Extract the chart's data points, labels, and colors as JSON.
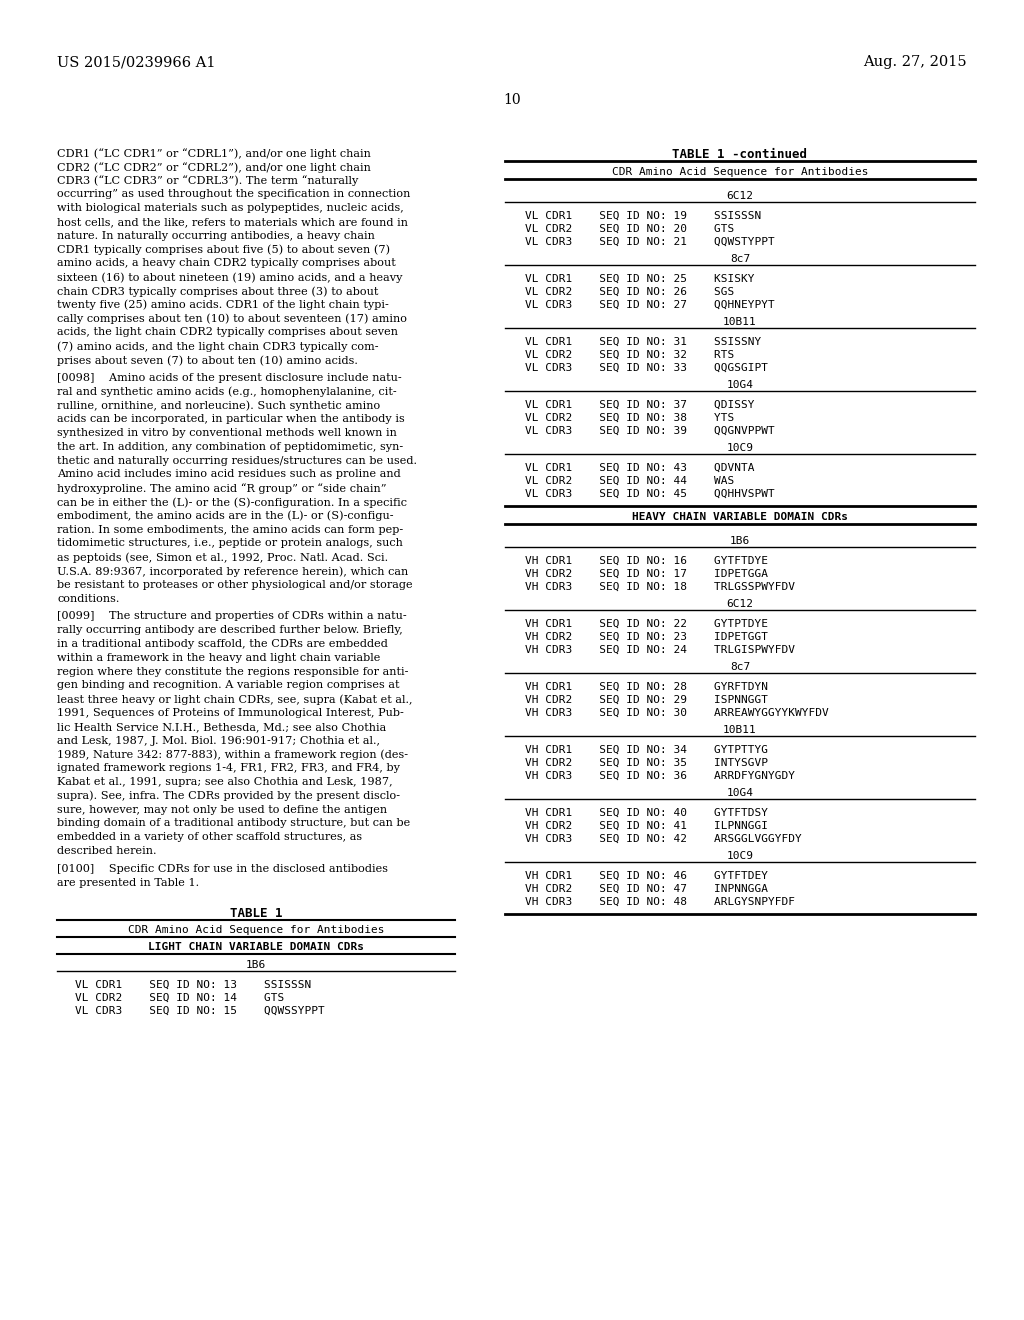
{
  "page_number": "10",
  "patent_left": "US 2015/0239966 A1",
  "patent_right": "Aug. 27, 2015",
  "bg_color": "#ffffff",
  "body_lines_1": [
    "CDR1 (“LC CDR1” or “CDRL1”), and/or one light chain",
    "CDR2 (“LC CDR2” or “CDRL2”), and/or one light chain",
    "CDR3 (“LC CDR3” or “CDRL3”). The term “naturally",
    "occurring” as used throughout the specification in connection",
    "with biological materials such as polypeptides, nucleic acids,",
    "host cells, and the like, refers to materials which are found in",
    "nature. In naturally occurring antibodies, a heavy chain",
    "CDR1 typically comprises about five (5) to about seven (7)",
    "amino acids, a heavy chain CDR2 typically comprises about",
    "sixteen (16) to about nineteen (19) amino acids, and a heavy",
    "chain CDR3 typically comprises about three (3) to about",
    "twenty five (25) amino acids. CDR1 of the light chain typi-",
    "cally comprises about ten (10) to about seventeen (17) amino",
    "acids, the light chain CDR2 typically comprises about seven",
    "(7) amino acids, and the light chain CDR3 typically com-",
    "prises about seven (7) to about ten (10) amino acids."
  ],
  "body_lines_2": [
    "[0098]    Amino acids of the present disclosure include natu-",
    "ral and synthetic amino acids (e.g., homophenylalanine, cit-",
    "rulline, ornithine, and norleucine). Such synthetic amino",
    "acids can be incorporated, in particular when the antibody is",
    "synthesized in vitro by conventional methods well known in",
    "the art. In addition, any combination of peptidomimetic, syn-",
    "thetic and naturally occurring residues/structures can be used.",
    "Amino acid includes imino acid residues such as proline and",
    "hydroxyproline. The amino acid “R group” or “side chain”",
    "can be in either the (L)- or the (S)-configuration. In a specific",
    "embodiment, the amino acids are in the (L)- or (S)-configu-",
    "ration. In some embodiments, the amino acids can form pep-",
    "tidomimetic structures, i.e., peptide or protein analogs, such",
    "as peptoids (see, Simon et al., 1992, Proc. Natl. Acad. Sci.",
    "U.S.A. 89:9367, incorporated by reference herein), which can",
    "be resistant to proteases or other physiological and/or storage",
    "conditions."
  ],
  "body_lines_3": [
    "[0099]    The structure and properties of CDRs within a natu-",
    "rally occurring antibody are described further below. Briefly,",
    "in a traditional antibody scaffold, the CDRs are embedded",
    "within a framework in the heavy and light chain variable",
    "region where they constitute the regions responsible for anti-",
    "gen binding and recognition. A variable region comprises at",
    "least three heavy or light chain CDRs, see, supra (Kabat et al.,",
    "1991, Sequences of Proteins of Immunological Interest, Pub-",
    "lic Health Service N.I.H., Bethesda, Md.; see also Chothia",
    "and Lesk, 1987, J. Mol. Biol. 196:901-917; Chothia et al.,",
    "1989, Nature 342: 877-883), within a framework region (des-",
    "ignated framework regions 1-4, FR1, FR2, FR3, and FR4, by",
    "Kabat et al., 1991, supra; see also Chothia and Lesk, 1987,",
    "supra). See, infra. The CDRs provided by the present disclo-",
    "sure, however, may not only be used to define the antigen",
    "binding domain of a traditional antibody structure, but can be",
    "embedded in a variety of other scaffold structures, as",
    "described herein."
  ],
  "body_lines_4": [
    "[0100]    Specific CDRs for use in the disclosed antibodies",
    "are presented in Table 1."
  ],
  "table1_title": "TABLE 1",
  "table1_subtitle": "CDR Amino Acid Sequence for Antibodies",
  "table1_domain_header": "LIGHT CHAIN VARIABLE DOMAIN CDRs",
  "table1_section_header": "1B6",
  "table1_rows": [
    "VL CDR1    SEQ ID NO: 13    SSISSSN",
    "VL CDR2    SEQ ID NO: 14    GTS",
    "VL CDR3    SEQ ID NO: 15    QQWSSYPPT"
  ],
  "right_table_title": "TABLE 1 -continued",
  "right_table_subtitle": "CDR Amino Acid Sequence for Antibodies",
  "vl_sections": [
    {
      "header": "6C12",
      "rows": [
        "VL CDR1    SEQ ID NO: 19    SSISSSN",
        "VL CDR2    SEQ ID NO: 20    GTS",
        "VL CDR3    SEQ ID NO: 21    QQWSTYPPT"
      ]
    },
    {
      "header": "8c7",
      "rows": [
        "VL CDR1    SEQ ID NO: 25    KSISKY",
        "VL CDR2    SEQ ID NO: 26    SGS",
        "VL CDR3    SEQ ID NO: 27    QQHNEYPYT"
      ]
    },
    {
      "header": "10B11",
      "rows": [
        "VL CDR1    SEQ ID NO: 31    SSISSNY",
        "VL CDR2    SEQ ID NO: 32    RTS",
        "VL CDR3    SEQ ID NO: 33    QQGSGIPT"
      ]
    },
    {
      "header": "10G4",
      "rows": [
        "VL CDR1    SEQ ID NO: 37    QDISSY",
        "VL CDR2    SEQ ID NO: 38    YTS",
        "VL CDR3    SEQ ID NO: 39    QQGNVPPWT"
      ]
    },
    {
      "header": "10C9",
      "rows": [
        "VL CDR1    SEQ ID NO: 43    QDVNTA",
        "VL CDR2    SEQ ID NO: 44    WAS",
        "VL CDR3    SEQ ID NO: 45    QQHHVSPWT"
      ]
    }
  ],
  "heavy_chain_header": "HEAVY CHAIN VARIABLE DOMAIN CDRs",
  "vh_sections": [
    {
      "header": "1B6",
      "rows": [
        "VH CDR1    SEQ ID NO: 16    GYTFTDYE",
        "VH CDR2    SEQ ID NO: 17    IDPETGGA",
        "VH CDR3    SEQ ID NO: 18    TRLGSSPWYFDV"
      ]
    },
    {
      "header": "6C12",
      "rows": [
        "VH CDR1    SEQ ID NO: 22    GYTPTDYE",
        "VH CDR2    SEQ ID NO: 23    IDPETGGT",
        "VH CDR3    SEQ ID NO: 24    TRLGISPWYFDV"
      ]
    },
    {
      "header": "8c7",
      "rows": [
        "VH CDR1    SEQ ID NO: 28    GYRFTDYN",
        "VH CDR2    SEQ ID NO: 29    ISPNNGGT",
        "VH CDR3    SEQ ID NO: 30    ARREAWYGGYYKWYFDV"
      ]
    },
    {
      "header": "10B11",
      "rows": [
        "VH CDR1    SEQ ID NO: 34    GYTPTTYG",
        "VH CDR2    SEQ ID NO: 35    INTYSGVP",
        "VH CDR3    SEQ ID NO: 36    ARRDFYGNYGDY"
      ]
    },
    {
      "header": "10G4",
      "rows": [
        "VH CDR1    SEQ ID NO: 40    GYTFTDSY",
        "VH CDR2    SEQ ID NO: 41    ILPNNGGI",
        "VH CDR3    SEQ ID NO: 42    ARSGGLVGGYFDY"
      ]
    },
    {
      "header": "10C9",
      "rows": [
        "VH CDR1    SEQ ID NO: 46    GYTFTDEY",
        "VH CDR2    SEQ ID NO: 47    INPNNGGA",
        "VH CDR3    SEQ ID NO: 48    ARLGYSNPYFDF"
      ]
    }
  ]
}
